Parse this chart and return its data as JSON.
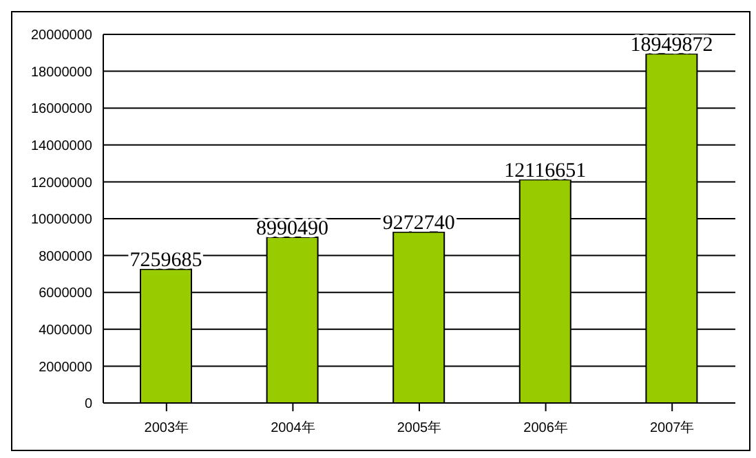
{
  "chart_data": {
    "type": "bar",
    "categories": [
      "2003年",
      "2004年",
      "2005年",
      "2006年",
      "2007年"
    ],
    "values": [
      7259685,
      8990490,
      9272740,
      12116651,
      18949872
    ],
    "color": "#99cc00",
    "ylim": [
      0,
      20000000
    ],
    "yticks": [
      0,
      2000000,
      4000000,
      6000000,
      8000000,
      10000000,
      12000000,
      14000000,
      16000000,
      18000000,
      20000000
    ],
    "grid": "y",
    "data_labels": true
  }
}
